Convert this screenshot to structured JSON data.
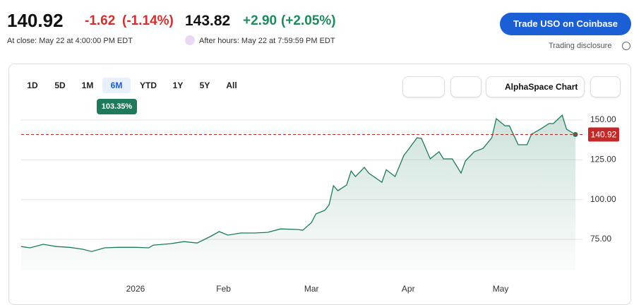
{
  "header": {
    "price": "140.92",
    "change": "-1.62",
    "change_pct": "(-1.14%)",
    "after_price": "143.82",
    "after_change": "+2.90",
    "after_change_pct": "(+2.05%)",
    "close_note": "At close: May 22 at 4:00:00 PM EDT",
    "after_note": "After hours: May 22 at 7:59:59 PM EDT",
    "trade_button": "Trade USO on Coinbase",
    "disclosure": "Trading disclosure"
  },
  "toolbar": {
    "ranges": [
      "1D",
      "5D",
      "1M",
      "6M",
      "YTD",
      "1Y",
      "5Y",
      "All"
    ],
    "selected": "6M",
    "range_return": "103.35%",
    "chart_button": "AlphaSpace Chart"
  },
  "chart_data": {
    "type": "area",
    "x": [
      0,
      2,
      5,
      8,
      11,
      14,
      16,
      19,
      22,
      26,
      29,
      30,
      34,
      37,
      40,
      43,
      45,
      47,
      50,
      53,
      56,
      59,
      63,
      64,
      66,
      67,
      69,
      70,
      71,
      72,
      74,
      75,
      76,
      78,
      79,
      82,
      83,
      85,
      87,
      88,
      90,
      91,
      93,
      95,
      96,
      98,
      100,
      101,
      103,
      105,
      107,
      108,
      110,
      111,
      113,
      115,
      116,
      118,
      120,
      121,
      123,
      124,
      126
    ],
    "series": [
      {
        "color": "#1f7a5c",
        "values": [
          70.5,
          69.7,
          71.9,
          70.5,
          70,
          68.8,
          67.4,
          69.7,
          70,
          70,
          69.7,
          71.4,
          72.3,
          73.6,
          72.7,
          76.8,
          79.9,
          77.7,
          79,
          79,
          79.4,
          81.6,
          81.2,
          80.7,
          85.6,
          91,
          93.2,
          96.7,
          108.7,
          105.6,
          109.2,
          118,
          114.5,
          120.3,
          116.7,
          110.9,
          118.8,
          114.5,
          127.8,
          131.4,
          138.9,
          138.5,
          125.6,
          130.1,
          125.6,
          125.6,
          116.7,
          124.3,
          130.1,
          132.2,
          138.9,
          150.9,
          146.4,
          146.4,
          134.5,
          134.5,
          141.1,
          144.2,
          147.8,
          147.8,
          153.1,
          144.2,
          140.92
        ]
      }
    ],
    "xlim": [
      0,
      126
    ],
    "xticks": [
      {
        "value": 26,
        "label": "2026"
      },
      {
        "value": 46,
        "label": "Feb"
      },
      {
        "value": 66,
        "label": "Mar"
      },
      {
        "value": 88,
        "label": "Apr"
      },
      {
        "value": 109,
        "label": "May"
      }
    ],
    "ylim": [
      55.5,
      158.9
    ],
    "yticks": [
      {
        "value": 75,
        "label": "75.00"
      },
      {
        "value": 100,
        "label": "100.00"
      },
      {
        "value": 125,
        "label": "125.00"
      },
      {
        "value": 150,
        "label": "150.00"
      }
    ],
    "reference_line": {
      "value": 140.92,
      "color": "#c62828"
    },
    "grid": true
  }
}
